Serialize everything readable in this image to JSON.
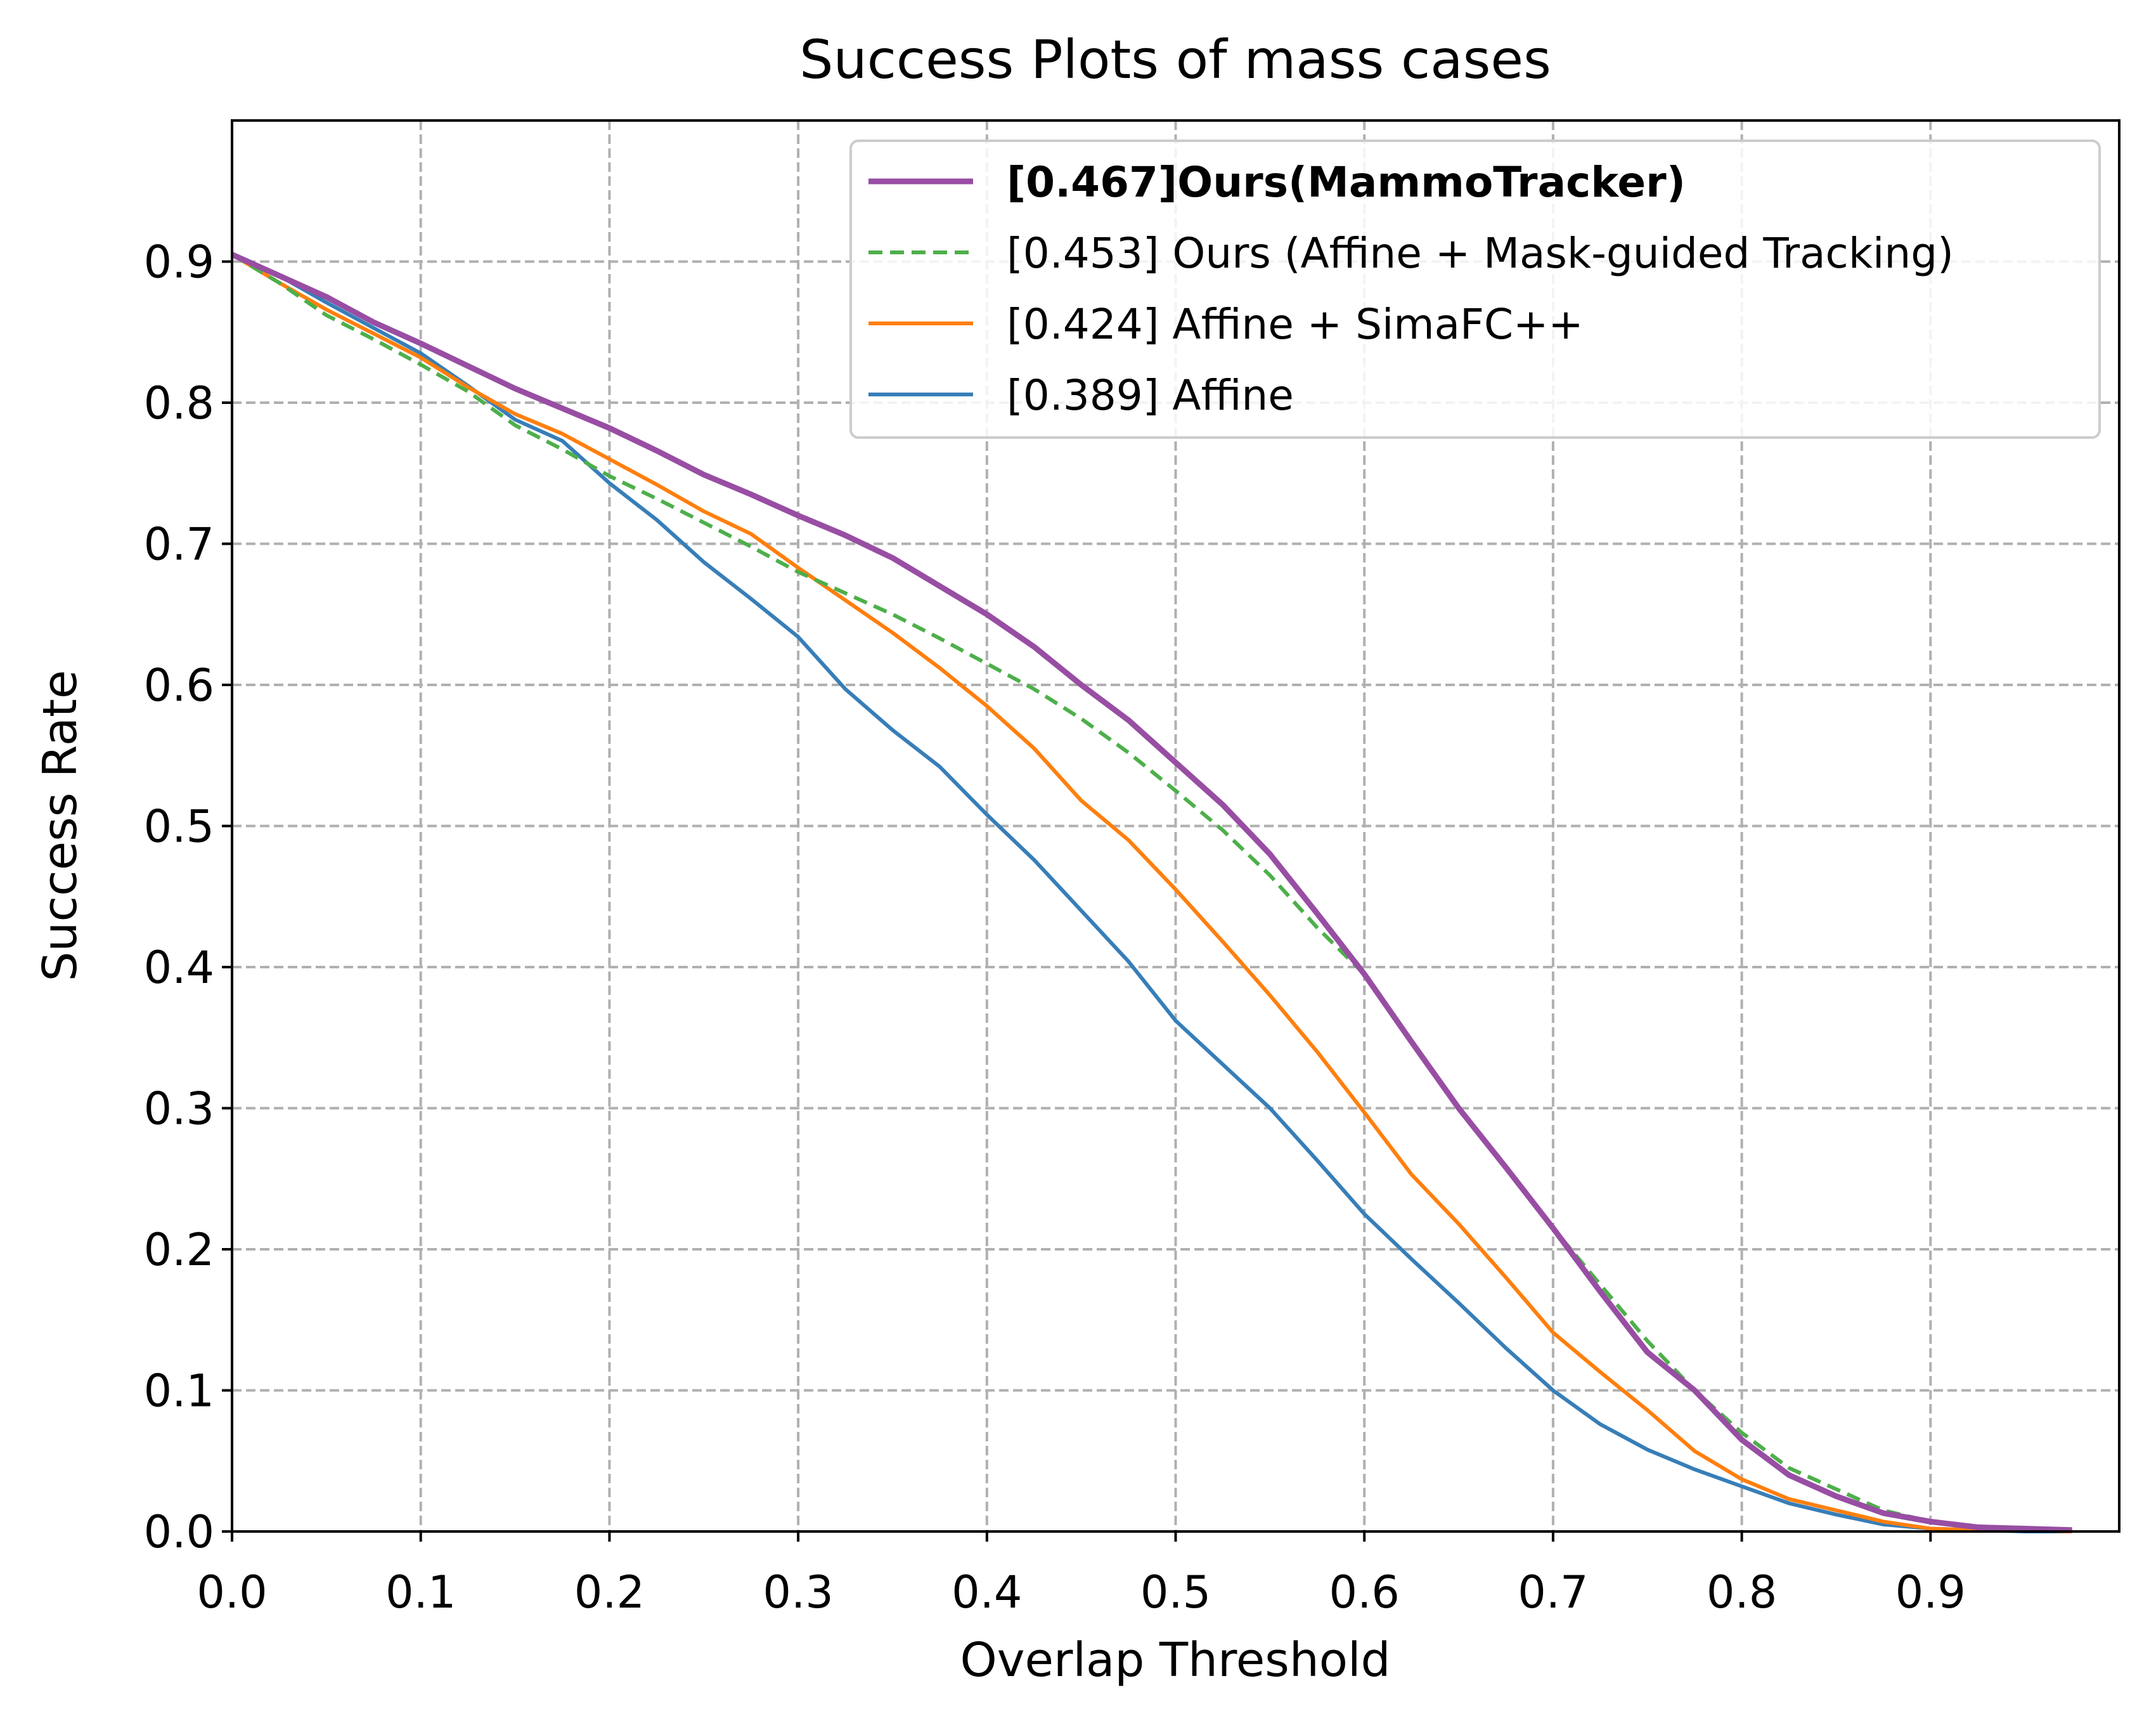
{
  "chart_data": {
    "type": "line",
    "title": "Success Plots of mass cases",
    "xlabel": "Overlap Threshold",
    "ylabel": "Success Rate",
    "xlim": [
      0,
      1.0
    ],
    "ylim": [
      0,
      1.0
    ],
    "xticks": [
      "0.0",
      "0.1",
      "0.2",
      "0.3",
      "0.4",
      "0.5",
      "0.6",
      "0.7",
      "0.8",
      "0.9"
    ],
    "yticks": [
      "0.0",
      "0.1",
      "0.2",
      "0.3",
      "0.4",
      "0.5",
      "0.6",
      "0.7",
      "0.8",
      "0.9"
    ],
    "grid": true,
    "legend_position": "top-right",
    "x": [
      0.0,
      0.025,
      0.05,
      0.075,
      0.1,
      0.125,
      0.15,
      0.175,
      0.2,
      0.225,
      0.25,
      0.275,
      0.3,
      0.325,
      0.35,
      0.375,
      0.4,
      0.425,
      0.45,
      0.475,
      0.5,
      0.525,
      0.55,
      0.575,
      0.6,
      0.625,
      0.65,
      0.675,
      0.7,
      0.725,
      0.75,
      0.775,
      0.8,
      0.825,
      0.85,
      0.875,
      0.9,
      0.925,
      0.95,
      0.975
    ],
    "series": [
      {
        "name": "[0.467]Ours(MammoTracker)",
        "color": "#984ea3",
        "style": "solid-thick",
        "bold": true,
        "values": [
          0.905,
          0.89,
          0.875,
          0.857,
          0.842,
          0.826,
          0.81,
          0.796,
          0.782,
          0.766,
          0.749,
          0.735,
          0.72,
          0.706,
          0.69,
          0.67,
          0.65,
          0.627,
          0.6,
          0.575,
          0.545,
          0.515,
          0.48,
          0.438,
          0.395,
          0.347,
          0.3,
          0.258,
          0.215,
          0.17,
          0.127,
          0.1,
          0.065,
          0.04,
          0.025,
          0.013,
          0.007,
          0.003,
          0.002,
          0.001
        ]
      },
      {
        "name": "[0.453] Ours (Affine + Mask-guided Tracking)",
        "color": "#4daf4a",
        "style": "dashed",
        "bold": false,
        "values": [
          0.905,
          0.885,
          0.862,
          0.845,
          0.827,
          0.808,
          0.784,
          0.767,
          0.748,
          0.732,
          0.715,
          0.698,
          0.68,
          0.665,
          0.65,
          0.633,
          0.615,
          0.597,
          0.576,
          0.552,
          0.525,
          0.497,
          0.465,
          0.428,
          0.395,
          0.347,
          0.3,
          0.258,
          0.215,
          0.175,
          0.135,
          0.1,
          0.07,
          0.045,
          0.03,
          0.015,
          0.007,
          0.003,
          0.002,
          0.001
        ]
      },
      {
        "name": "[0.424] Affine + SimaFC++",
        "color": "#ff7f0e",
        "style": "solid",
        "bold": false,
        "values": [
          0.905,
          0.885,
          0.866,
          0.849,
          0.832,
          0.811,
          0.792,
          0.778,
          0.76,
          0.742,
          0.723,
          0.707,
          0.683,
          0.66,
          0.637,
          0.612,
          0.585,
          0.555,
          0.518,
          0.49,
          0.455,
          0.418,
          0.38,
          0.34,
          0.297,
          0.253,
          0.218,
          0.18,
          0.141,
          0.113,
          0.086,
          0.057,
          0.037,
          0.023,
          0.015,
          0.007,
          0.002,
          0.001,
          0.001,
          0.0
        ]
      },
      {
        "name": "[0.389] Affine",
        "color": "#377eb8",
        "style": "solid",
        "bold": false,
        "values": [
          0.905,
          0.89,
          0.871,
          0.853,
          0.835,
          0.812,
          0.788,
          0.773,
          0.743,
          0.717,
          0.687,
          0.661,
          0.634,
          0.597,
          0.568,
          0.542,
          0.508,
          0.476,
          0.44,
          0.404,
          0.362,
          0.331,
          0.3,
          0.263,
          0.225,
          0.193,
          0.162,
          0.13,
          0.1,
          0.076,
          0.058,
          0.044,
          0.032,
          0.02,
          0.012,
          0.005,
          0.002,
          0.001,
          0.0,
          0.0
        ]
      }
    ]
  }
}
